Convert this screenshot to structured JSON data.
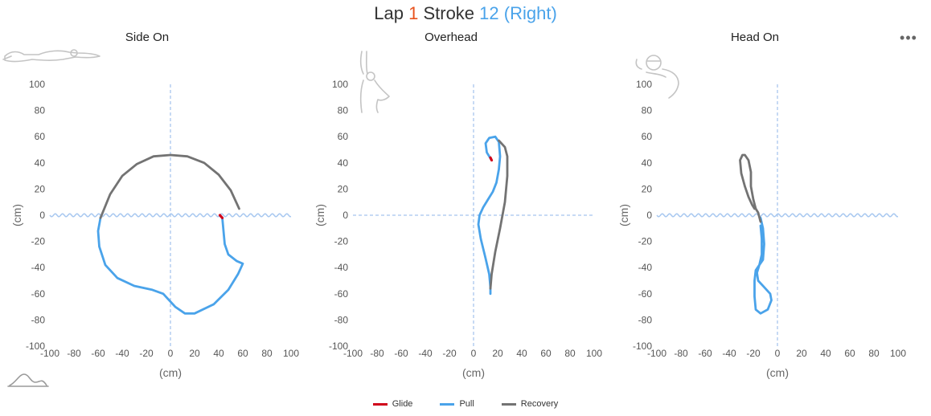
{
  "header": {
    "lap_label": "Lap",
    "lap_number": "1",
    "stroke_label": "Stroke",
    "stroke_info": "12 (Right)"
  },
  "colors": {
    "glide": "#d0021b",
    "pull": "#4aa3ea",
    "recovery": "#737373",
    "wave": "#a8c8f0",
    "axis_dash": "#8fb4e8"
  },
  "legend": [
    {
      "name": "Glide",
      "color": "#d0021b"
    },
    {
      "name": "Pull",
      "color": "#4aa3ea"
    },
    {
      "name": "Recovery",
      "color": "#737373"
    }
  ],
  "icons": {
    "panel_icons": [
      "swimmer-side-icon",
      "swimmer-overhead-icon",
      "swimmer-head-on-icon"
    ],
    "bottom_icon": "waveform-icon",
    "menu_icon": "more-options-icon"
  },
  "chart_data": [
    {
      "type": "line",
      "title": "Side On",
      "xlabel": "(cm)",
      "ylabel": "(cm)",
      "xlim": [
        -100,
        100
      ],
      "ylim": [
        -100,
        100
      ],
      "x_ticks": [
        -100,
        -80,
        -60,
        -40,
        -20,
        0,
        20,
        40,
        60,
        80,
        100
      ],
      "y_ticks": [
        100,
        80,
        60,
        40,
        20,
        0,
        -20,
        -40,
        -60,
        -80,
        -100
      ],
      "water_line": true,
      "series": [
        {
          "name": "Glide",
          "points": [
            [
              41,
              0
            ],
            [
              43,
              -2
            ]
          ]
        },
        {
          "name": "Pull",
          "points": [
            [
              43,
              -2
            ],
            [
              44,
              -12
            ],
            [
              45,
              -22
            ],
            [
              48,
              -30
            ],
            [
              55,
              -35
            ],
            [
              60,
              -37
            ],
            [
              56,
              -45
            ],
            [
              48,
              -57
            ],
            [
              36,
              -68
            ],
            [
              20,
              -75
            ],
            [
              12,
              -75
            ],
            [
              4,
              -70
            ],
            [
              -2,
              -64
            ],
            [
              -6,
              -60
            ],
            [
              -15,
              -57
            ],
            [
              -30,
              -54
            ],
            [
              -44,
              -48
            ],
            [
              -54,
              -38
            ],
            [
              -59,
              -24
            ],
            [
              -60,
              -12
            ],
            [
              -58,
              -2
            ]
          ]
        },
        {
          "name": "Recovery",
          "points": [
            [
              -58,
              -2
            ],
            [
              -50,
              16
            ],
            [
              -40,
              30
            ],
            [
              -28,
              39
            ],
            [
              -14,
              45
            ],
            [
              0,
              46
            ],
            [
              14,
              45
            ],
            [
              28,
              40
            ],
            [
              40,
              31
            ],
            [
              50,
              19
            ],
            [
              57,
              5
            ]
          ]
        }
      ]
    },
    {
      "type": "line",
      "title": "Overhead",
      "xlabel": "(cm)",
      "ylabel": "(cm)",
      "xlim": [
        -100,
        100
      ],
      "ylim": [
        -100,
        100
      ],
      "x_ticks": [
        -100,
        -80,
        -60,
        -40,
        -20,
        0,
        20,
        40,
        60,
        80,
        100
      ],
      "y_ticks": [
        100,
        80,
        60,
        40,
        20,
        0,
        -20,
        -40,
        -60,
        -80,
        -100
      ],
      "water_line": false,
      "series": [
        {
          "name": "Glide",
          "points": [
            [
              14,
              44
            ],
            [
              15,
              42
            ]
          ]
        },
        {
          "name": "Pull",
          "points": [
            [
              15,
              42
            ],
            [
              11,
              48
            ],
            [
              10,
              55
            ],
            [
              13,
              59
            ],
            [
              18,
              60
            ],
            [
              21,
              56
            ],
            [
              22,
              45
            ],
            [
              21,
              35
            ],
            [
              19,
              25
            ],
            [
              16,
              18
            ],
            [
              12,
              12
            ],
            [
              8,
              6
            ],
            [
              5,
              0
            ],
            [
              4,
              -7
            ],
            [
              6,
              -18
            ],
            [
              10,
              -33
            ],
            [
              13,
              -45
            ],
            [
              14,
              -55
            ],
            [
              14,
              -60
            ]
          ]
        },
        {
          "name": "Recovery",
          "points": [
            [
              14,
              -56
            ],
            [
              15,
              -45
            ],
            [
              18,
              -28
            ],
            [
              22,
              -10
            ],
            [
              26,
              10
            ],
            [
              28,
              30
            ],
            [
              28,
              45
            ],
            [
              26,
              52
            ],
            [
              21,
              57
            ]
          ]
        }
      ]
    },
    {
      "type": "line",
      "title": "Head On",
      "xlabel": "(cm)",
      "ylabel": "(cm)",
      "xlim": [
        -100,
        100
      ],
      "ylim": [
        -100,
        100
      ],
      "x_ticks": [
        -100,
        -80,
        -60,
        -40,
        -20,
        0,
        20,
        40,
        60,
        80,
        100
      ],
      "y_ticks": [
        100,
        80,
        60,
        40,
        20,
        0,
        -20,
        -40,
        -60,
        -80,
        -100
      ],
      "water_line": true,
      "series": [
        {
          "name": "Pull",
          "points": [
            [
              -14,
              -2
            ],
            [
              -12,
              -10
            ],
            [
              -11,
              -22
            ],
            [
              -12,
              -34
            ],
            [
              -15,
              -38
            ],
            [
              -17,
              -44
            ],
            [
              -16,
              -50
            ],
            [
              -11,
              -55
            ],
            [
              -6,
              -60
            ],
            [
              -5,
              -65
            ],
            [
              -8,
              -72
            ],
            [
              -14,
              -75
            ],
            [
              -18,
              -72
            ],
            [
              -19,
              -62
            ],
            [
              -19,
              -50
            ],
            [
              -18,
              -42
            ],
            [
              -15,
              -38
            ],
            [
              -13,
              -30
            ],
            [
              -13,
              -18
            ],
            [
              -14,
              -8
            ]
          ]
        },
        {
          "name": "Recovery",
          "points": [
            [
              -14,
              -5
            ],
            [
              -16,
              2
            ],
            [
              -18,
              5
            ],
            [
              -20,
              12
            ],
            [
              -22,
              22
            ],
            [
              -22,
              33
            ],
            [
              -24,
              42
            ],
            [
              -27,
              46
            ],
            [
              -29,
              46
            ],
            [
              -31,
              42
            ],
            [
              -30,
              32
            ],
            [
              -27,
              22
            ],
            [
              -24,
              14
            ],
            [
              -21,
              8
            ],
            [
              -19,
              5
            ]
          ]
        }
      ]
    }
  ]
}
